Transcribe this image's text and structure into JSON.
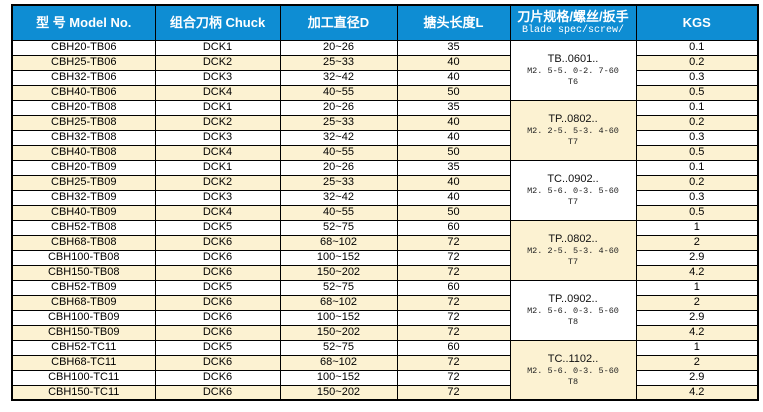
{
  "colors": {
    "header_bg": "#0E8DD3",
    "header_text": "#FFFFFF",
    "row_stripe_cream": "#FCF2D2",
    "border": "#000000",
    "text": "#000000"
  },
  "table": {
    "columns": [
      {
        "id": "model",
        "label": "型 号 Model No."
      },
      {
        "id": "chuck",
        "label": "组合刀柄 Chuck"
      },
      {
        "id": "diameter",
        "label": "加工直径D"
      },
      {
        "id": "length",
        "label": "搪头长度L"
      },
      {
        "id": "blade",
        "label": "刀片规格/螺丝/扳手",
        "sublabel": "Blade spec/screw/"
      },
      {
        "id": "kgs",
        "label": "KGS"
      }
    ],
    "groups": [
      {
        "blade_spec": {
          "code": "TB..0601..",
          "screw": "M2. 5-5. 0-2. 7-60",
          "wrench": "T6",
          "bg": "white"
        },
        "rows": [
          {
            "model": "CBH20-TB06",
            "chuck": "DCK1",
            "diameter": "20~26",
            "length": "35",
            "kgs": "0.1"
          },
          {
            "model": "CBH25-TB06",
            "chuck": "DCK2",
            "diameter": "25~33",
            "length": "40",
            "kgs": "0.2"
          },
          {
            "model": "CBH32-TB06",
            "chuck": "DCK3",
            "diameter": "32~42",
            "length": "40",
            "kgs": "0.3"
          },
          {
            "model": "CBH40-TB06",
            "chuck": "DCK4",
            "diameter": "40~55",
            "length": "50",
            "kgs": "0.5"
          }
        ]
      },
      {
        "blade_spec": {
          "code": "TP..0802..",
          "screw": "M2. 2-5. 5-3. 4-60",
          "wrench": "T7",
          "bg": "cream"
        },
        "rows": [
          {
            "model": "CBH20-TB08",
            "chuck": "DCK1",
            "diameter": "20~26",
            "length": "35",
            "kgs": "0.1"
          },
          {
            "model": "CBH25-TB08",
            "chuck": "DCK2",
            "diameter": "25~33",
            "length": "40",
            "kgs": "0.2"
          },
          {
            "model": "CBH32-TB08",
            "chuck": "DCK3",
            "diameter": "32~42",
            "length": "40",
            "kgs": "0.3"
          },
          {
            "model": "CBH40-TB08",
            "chuck": "DCK4",
            "diameter": "40~55",
            "length": "50",
            "kgs": "0.5"
          }
        ]
      },
      {
        "blade_spec": {
          "code": "TC..0902..",
          "screw": "M2. 5-6. 0-3. 5-60",
          "wrench": "T7",
          "bg": "white"
        },
        "rows": [
          {
            "model": "CBH20-TB09",
            "chuck": "DCK1",
            "diameter": "20~26",
            "length": "35",
            "kgs": "0.1"
          },
          {
            "model": "CBH25-TB09",
            "chuck": "DCK2",
            "diameter": "25~33",
            "length": "40",
            "kgs": "0.2"
          },
          {
            "model": "CBH32-TB09",
            "chuck": "DCK3",
            "diameter": "32~42",
            "length": "40",
            "kgs": "0.3"
          },
          {
            "model": "CBH40-TB09",
            "chuck": "DCK4",
            "diameter": "40~55",
            "length": "50",
            "kgs": "0.5"
          }
        ]
      },
      {
        "blade_spec": {
          "code": "TP..0802..",
          "screw": "M2. 2-5. 5-3. 4-60",
          "wrench": "T7",
          "bg": "cream"
        },
        "rows": [
          {
            "model": "CBH52-TB08",
            "chuck": "DCK5",
            "diameter": "52~75",
            "length": "60",
            "kgs": "1"
          },
          {
            "model": "CBH68-TB08",
            "chuck": "DCK6",
            "diameter": "68~102",
            "length": "72",
            "kgs": "2"
          },
          {
            "model": "CBH100-TB08",
            "chuck": "DCK6",
            "diameter": "100~152",
            "length": "72",
            "kgs": "2.9"
          },
          {
            "model": "CBH150-TB08",
            "chuck": "DCK6",
            "diameter": "150~202",
            "length": "72",
            "kgs": "4.2"
          }
        ]
      },
      {
        "blade_spec": {
          "code": "TP..0902..",
          "screw": "M2. 5-6. 0-3. 5-60",
          "wrench": "T8",
          "bg": "white"
        },
        "rows": [
          {
            "model": "CBH52-TB09",
            "chuck": "DCK5",
            "diameter": "52~75",
            "length": "60",
            "kgs": "1"
          },
          {
            "model": "CBH68-TB09",
            "chuck": "DCK6",
            "diameter": "68~102",
            "length": "72",
            "kgs": "2"
          },
          {
            "model": "CBH100-TB09",
            "chuck": "DCK6",
            "diameter": "100~152",
            "length": "72",
            "kgs": "2.9"
          },
          {
            "model": "CBH150-TB09",
            "chuck": "DCK6",
            "diameter": "150~202",
            "length": "72",
            "kgs": "4.2"
          }
        ]
      },
      {
        "blade_spec": {
          "code": "TC..1102..",
          "screw": "M2. 5-6. 0-3. 5-60",
          "wrench": "T8",
          "bg": "cream"
        },
        "rows": [
          {
            "model": "CBH52-TC11",
            "chuck": "DCK5",
            "diameter": "52~75",
            "length": "60",
            "kgs": "1"
          },
          {
            "model": "CBH68-TC11",
            "chuck": "DCK6",
            "diameter": "68~102",
            "length": "72",
            "kgs": "2"
          },
          {
            "model": "CBH100-TC11",
            "chuck": "DCK6",
            "diameter": "100~152",
            "length": "72",
            "kgs": "2.9"
          },
          {
            "model": "CBH150-TC11",
            "chuck": "DCK6",
            "diameter": "150~202",
            "length": "72",
            "kgs": "4.2"
          }
        ]
      }
    ]
  }
}
